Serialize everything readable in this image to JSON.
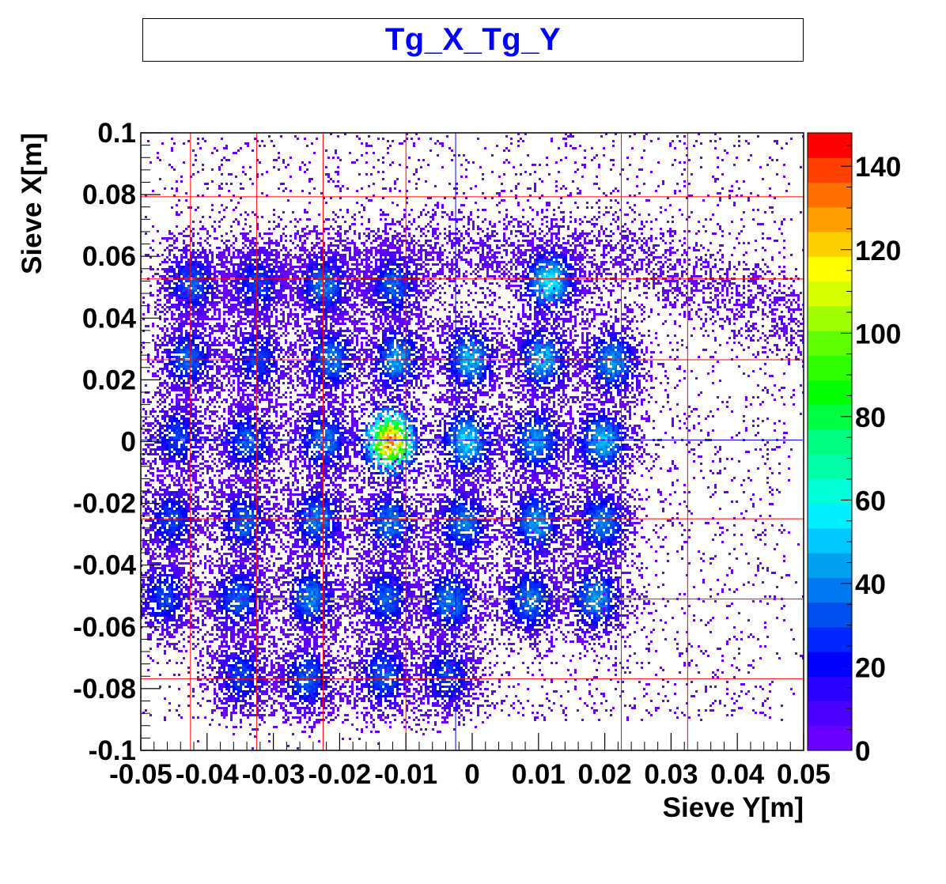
{
  "title": "Tg_X_Tg_Y",
  "chart_data": {
    "type": "heatmap",
    "title": "Tg_X_Tg_Y",
    "xlabel": "Sieve Y[m]",
    "ylabel": "Sieve X[m]",
    "xlim": [
      -0.05,
      0.05
    ],
    "ylim": [
      -0.1,
      0.1
    ],
    "x_tick_labels": [
      "-0.05",
      "-0.04",
      "-0.03",
      "-0.02",
      "-0.01",
      "0",
      "0.01",
      "0.02",
      "0.03",
      "0.04",
      "0.05"
    ],
    "y_tick_labels": [
      "0.1",
      "0.08",
      "0.06",
      "0.04",
      "0.02",
      "0",
      "-0.02",
      "-0.04",
      "-0.06",
      "-0.08",
      "-0.1"
    ],
    "colorbar": {
      "min": 0,
      "max": 148,
      "tick_labels": [
        "0",
        "20",
        "40",
        "60",
        "80",
        "100",
        "120",
        "140"
      ],
      "colors": [
        "#6a00ff",
        "#4c00ff",
        "#2b00ff",
        "#0000ff",
        "#0028ff",
        "#0050f0",
        "#0078f0",
        "#00a0f0",
        "#00c8ff",
        "#00f0ff",
        "#00ffd8",
        "#00ffa8",
        "#00ff80",
        "#00ff40",
        "#00ff00",
        "#30ff00",
        "#60ff00",
        "#a0ff00",
        "#d8ff00",
        "#ffff00",
        "#ffd000",
        "#ffa000",
        "#ff7000",
        "#ff4000",
        "#ff0000"
      ]
    },
    "guide_lines": {
      "red_x": [
        -0.0425,
        -0.0325,
        -0.0225,
        -0.01,
        0.0225,
        0.0325
      ],
      "blue_x": [
        -0.0025
      ],
      "red_y": [
        0.0793,
        0.0527,
        0.0265,
        -0.025,
        -0.051,
        -0.0768
      ],
      "blue_y": [
        0.0005
      ]
    },
    "hot_spots": [
      {
        "x": -0.0425,
        "y": 0.0515,
        "peak": 40
      },
      {
        "x": -0.0325,
        "y": 0.0515,
        "peak": 35
      },
      {
        "x": -0.0225,
        "y": 0.051,
        "peak": 45
      },
      {
        "x": -0.012,
        "y": 0.051,
        "peak": 40
      },
      {
        "x": 0.0115,
        "y": 0.052,
        "peak": 65
      },
      {
        "x": -0.043,
        "y": 0.027,
        "peak": 40
      },
      {
        "x": -0.0325,
        "y": 0.027,
        "peak": 35
      },
      {
        "x": -0.0215,
        "y": 0.027,
        "peak": 45
      },
      {
        "x": -0.0115,
        "y": 0.027,
        "peak": 50
      },
      {
        "x": -0.0005,
        "y": 0.027,
        "peak": 55
      },
      {
        "x": 0.0105,
        "y": 0.027,
        "peak": 55
      },
      {
        "x": 0.021,
        "y": 0.026,
        "peak": 50
      },
      {
        "x": -0.0445,
        "y": 0.0015,
        "peak": 35
      },
      {
        "x": -0.034,
        "y": 0.0005,
        "peak": 40
      },
      {
        "x": -0.0225,
        "y": 0.0005,
        "peak": 45
      },
      {
        "x": -0.0125,
        "y": 0.0005,
        "peak": 148
      },
      {
        "x": -0.001,
        "y": 0.0005,
        "peak": 60
      },
      {
        "x": 0.0095,
        "y": 0.0005,
        "peak": 50
      },
      {
        "x": 0.0195,
        "y": 0.0005,
        "peak": 55
      },
      {
        "x": -0.0455,
        "y": -0.025,
        "peak": 35
      },
      {
        "x": -0.0345,
        "y": -0.026,
        "peak": 40
      },
      {
        "x": -0.0235,
        "y": -0.025,
        "peak": 45
      },
      {
        "x": -0.0125,
        "y": -0.026,
        "peak": 45
      },
      {
        "x": -0.0015,
        "y": -0.026,
        "peak": 45
      },
      {
        "x": 0.0095,
        "y": -0.026,
        "peak": 50
      },
      {
        "x": 0.0195,
        "y": -0.026,
        "peak": 45
      },
      {
        "x": -0.0465,
        "y": -0.05,
        "peak": 35
      },
      {
        "x": -0.0355,
        "y": -0.0505,
        "peak": 40
      },
      {
        "x": -0.0245,
        "y": -0.0505,
        "peak": 45
      },
      {
        "x": -0.013,
        "y": -0.0505,
        "peak": 40
      },
      {
        "x": -0.0035,
        "y": -0.0515,
        "peak": 45
      },
      {
        "x": 0.0085,
        "y": -0.051,
        "peak": 45
      },
      {
        "x": 0.0185,
        "y": -0.0505,
        "peak": 50
      },
      {
        "x": -0.035,
        "y": -0.0755,
        "peak": 35
      },
      {
        "x": -0.025,
        "y": -0.0765,
        "peak": 40
      },
      {
        "x": -0.0135,
        "y": -0.0755,
        "peak": 40
      },
      {
        "x": -0.004,
        "y": -0.0755,
        "peak": 35
      }
    ]
  }
}
